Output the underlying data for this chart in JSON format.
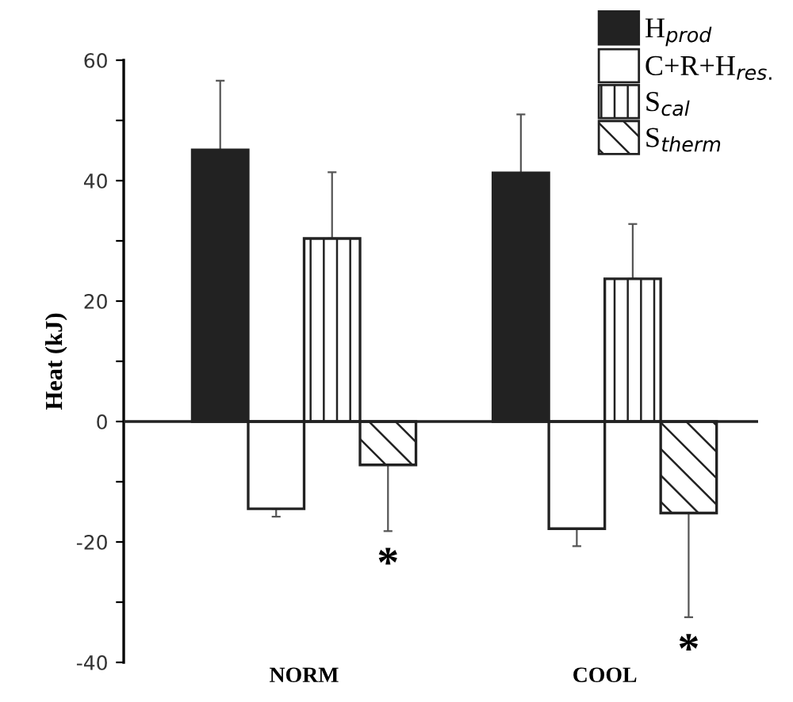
{
  "chart_data": {
    "type": "bar",
    "ylabel": "Heat (kJ)",
    "categories": [
      "NORM",
      "COOL"
    ],
    "series": [
      {
        "name": "H$_{prod}$",
        "color": "#222222",
        "values": [
          45.1,
          41.3
        ],
        "errors": [
          [
            45.1,
            56.6
          ],
          [
            41.3,
            51
          ]
        ]
      },
      {
        "name": "C+R+H$_{res.}$",
        "color": "#ffffff",
        "values": [
          -14.5,
          -17.8
        ],
        "errors": [
          [
            -15.8,
            -14.5
          ],
          [
            -20.7,
            -17.8
          ]
        ]
      },
      {
        "name": "S$_{cal}$",
        "color": "#222222",
        "values": [
          30.4,
          23.7
        ],
        "errors": [
          [
            30.4,
            41.4
          ],
          [
            23.7,
            32.8
          ]
        ]
      },
      {
        "name": "S$_{therm}$",
        "color": "#222222",
        "values": [
          -7.2,
          -15.2
        ],
        "errors": [
          [
            -18.2,
            -7.2
          ],
          [
            -32.5,
            -15.2
          ]
        ]
      }
    ],
    "ylim": [
      -40,
      60
    ],
    "yticks": [
      -40,
      {
        "value": -30,
        "label": null
      },
      -20,
      {
        "value": -10,
        "label": null
      },
      0,
      {
        "value": 10,
        "label": null
      },
      20,
      {
        "value": 30,
        "label": null
      },
      40,
      {
        "value": 50,
        "label": null
      },
      60
    ],
    "ref_lines": [
      {
        "axis": "y",
        "value": 0,
        "color": "#222222"
      }
    ],
    "annotations": [
      "*",
      "*"
    ],
    "legend": "top right"
  }
}
